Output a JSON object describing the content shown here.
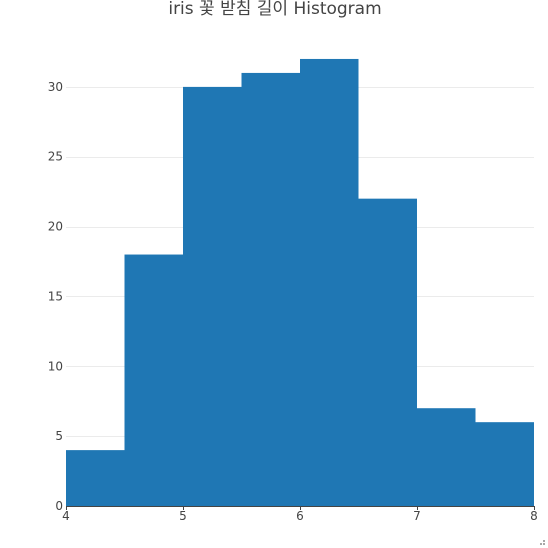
{
  "chart_data": {
    "type": "bar",
    "title": "iris 꽃 받침 길이 Histogram",
    "xlabel": "",
    "ylabel": "",
    "bins": [
      {
        "start": 4.0,
        "end": 4.5,
        "count": 4
      },
      {
        "start": 4.5,
        "end": 5.0,
        "count": 18
      },
      {
        "start": 5.0,
        "end": 5.5,
        "count": 30
      },
      {
        "start": 5.5,
        "end": 6.0,
        "count": 31
      },
      {
        "start": 6.0,
        "end": 6.5,
        "count": 32
      },
      {
        "start": 6.5,
        "end": 7.0,
        "count": 22
      },
      {
        "start": 7.0,
        "end": 7.5,
        "count": 7
      },
      {
        "start": 7.5,
        "end": 8.0,
        "count": 6
      }
    ],
    "xlim": [
      4,
      8
    ],
    "ylim": [
      0,
      33.5
    ],
    "x_ticks": [
      4,
      5,
      6,
      7,
      8
    ],
    "y_ticks": [
      0,
      5,
      10,
      15,
      20,
      25,
      30
    ],
    "grid": "horizontal",
    "legend": "none",
    "bar_color": "#1f77b4"
  }
}
